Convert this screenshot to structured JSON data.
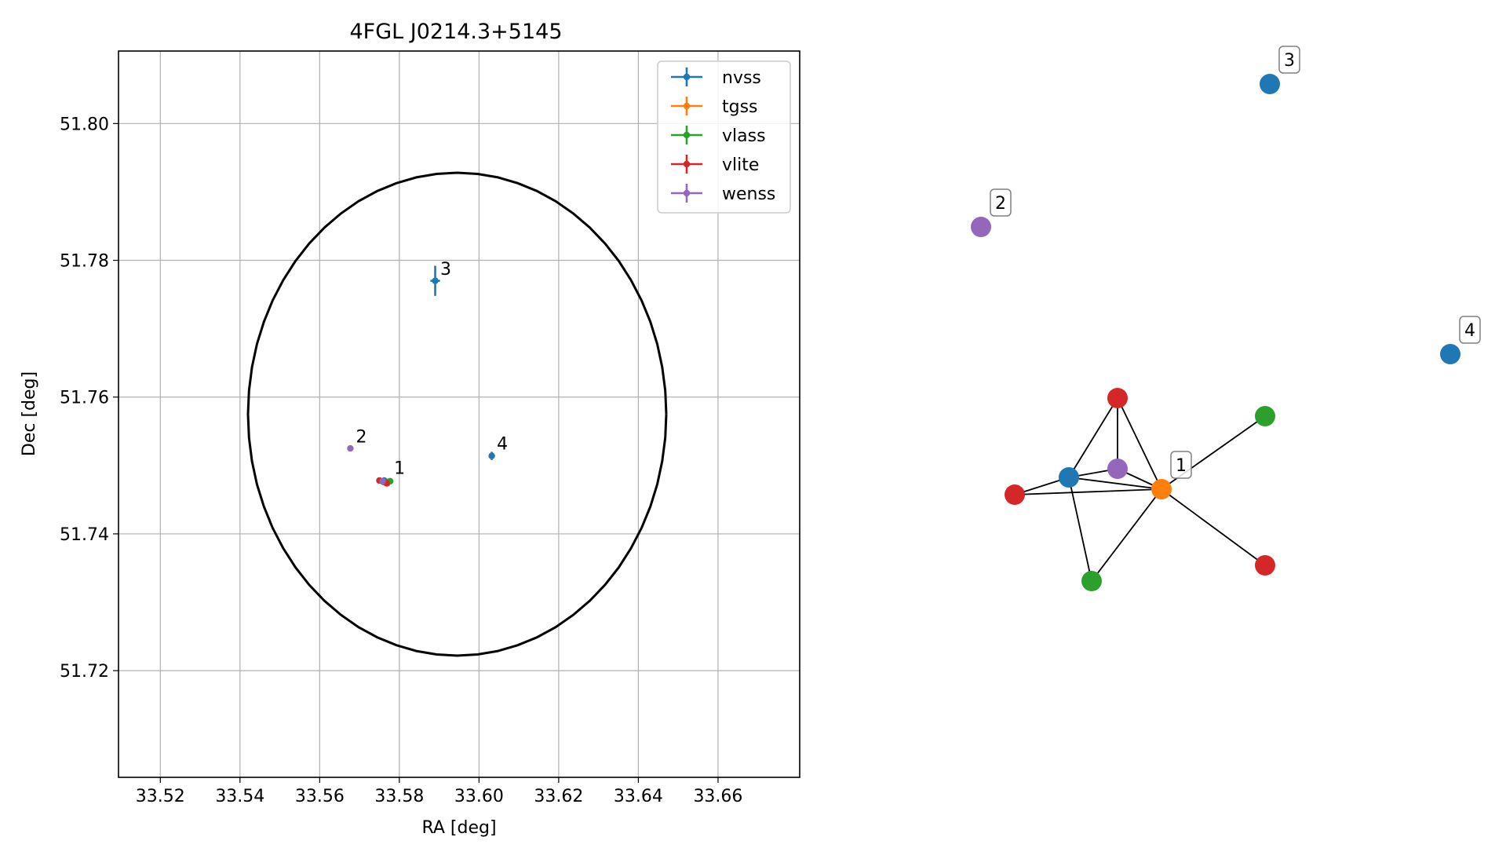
{
  "chart_data": [
    {
      "type": "scatter",
      "title": "4FGL J0214.3+5145",
      "xlabel": "RA [deg]",
      "ylabel": "Dec [deg]",
      "xlim": [
        33.5095,
        33.6805
      ],
      "ylim": [
        51.7044,
        51.8106
      ],
      "xticks": [
        "33.52",
        "33.54",
        "33.56",
        "33.58",
        "33.60",
        "33.62",
        "33.64",
        "33.66"
      ],
      "xtick_values": [
        33.52,
        33.54,
        33.56,
        33.58,
        33.6,
        33.62,
        33.64,
        33.66
      ],
      "yticks": [
        "51.72",
        "51.74",
        "51.76",
        "51.78",
        "51.80"
      ],
      "ytick_values": [
        51.72,
        51.74,
        51.76,
        51.78,
        51.8
      ],
      "grid": true,
      "legend_position": "top-right",
      "ellipse": {
        "center": [
          33.5945,
          51.7575
        ],
        "semi_axis_ra": 0.0525,
        "semi_axis_dec": 0.0353,
        "color": "#000000"
      },
      "series": [
        {
          "name": "nvss",
          "color": "#1f77b4",
          "points": [
            {
              "x": 33.5762,
              "y": 51.7478,
              "xerr": 0.0004,
              "yerr": 0.0003
            },
            {
              "x": 33.589,
              "y": 51.777,
              "xerr": 0.0012,
              "yerr": 0.0022
            },
            {
              "x": 33.6032,
              "y": 51.7514,
              "xerr": 0.0006,
              "yerr": 0.0006
            }
          ]
        },
        {
          "name": "tgss",
          "color": "#ff7f0e",
          "points": [
            {
              "x": 33.577,
              "y": 51.7474,
              "xerr": 0.0003,
              "yerr": 0.0003
            }
          ]
        },
        {
          "name": "vlass",
          "color": "#2ca02c",
          "points": [
            {
              "x": 33.5777,
              "y": 51.7477,
              "xerr": 0.0001,
              "yerr": 0.0001
            },
            {
              "x": 33.5771,
              "y": 51.7476,
              "xerr": 0.0001,
              "yerr": 0.0001
            }
          ]
        },
        {
          "name": "vlite",
          "color": "#d62728",
          "points": [
            {
              "x": 33.575,
              "y": 51.7478,
              "xerr": 0.0004,
              "yerr": 0.0004
            },
            {
              "x": 33.5768,
              "y": 51.7474,
              "xerr": 0.0004,
              "yerr": 0.0004
            },
            {
              "x": 33.576,
              "y": 51.7476,
              "xerr": 0.0004,
              "yerr": 0.0004
            }
          ]
        },
        {
          "name": "wenss",
          "color": "#9467bd",
          "points": [
            {
              "x": 33.5677,
              "y": 51.7525,
              "xerr": 0.0005,
              "yerr": 0.0004
            },
            {
              "x": 33.5758,
              "y": 51.7477,
              "xerr": 0.0004,
              "yerr": 0.0004
            }
          ]
        }
      ],
      "annotations": [
        {
          "text": "1",
          "x": 33.5775,
          "y": 51.7483
        },
        {
          "text": "2",
          "x": 33.5679,
          "y": 51.7529
        },
        {
          "text": "3",
          "x": 33.5891,
          "y": 51.7774
        },
        {
          "text": "4",
          "x": 33.6033,
          "y": 51.7519
        }
      ]
    },
    {
      "type": "network",
      "nodes": [
        {
          "id": "n1",
          "color": "#1f77b4"
        },
        {
          "id": "n2",
          "color": "#ff7f0e"
        },
        {
          "id": "n3",
          "color": "#9467bd"
        },
        {
          "id": "n4",
          "color": "#d62728"
        },
        {
          "id": "n5",
          "color": "#d62728"
        },
        {
          "id": "n6",
          "color": "#2ca02c"
        },
        {
          "id": "n7",
          "color": "#2ca02c"
        },
        {
          "id": "n8",
          "color": "#d62728"
        },
        {
          "id": "n9",
          "color": "#9467bd"
        },
        {
          "id": "n10",
          "color": "#1f77b4"
        },
        {
          "id": "n11",
          "color": "#1f77b4"
        }
      ],
      "edges": [
        [
          "n1",
          "n2"
        ],
        [
          "n1",
          "n3"
        ],
        [
          "n1",
          "n4"
        ],
        [
          "n1",
          "n5"
        ],
        [
          "n1",
          "n6"
        ],
        [
          "n2",
          "n3"
        ],
        [
          "n2",
          "n4"
        ],
        [
          "n2",
          "n5"
        ],
        [
          "n2",
          "n6"
        ],
        [
          "n2",
          "n7"
        ],
        [
          "n2",
          "n8"
        ],
        [
          "n3",
          "n4"
        ]
      ],
      "labels": [
        {
          "text": "1",
          "node": "n2"
        },
        {
          "text": "2",
          "node": "n9"
        },
        {
          "text": "3",
          "node": "n10"
        },
        {
          "text": "4",
          "node": "n11"
        }
      ]
    }
  ]
}
